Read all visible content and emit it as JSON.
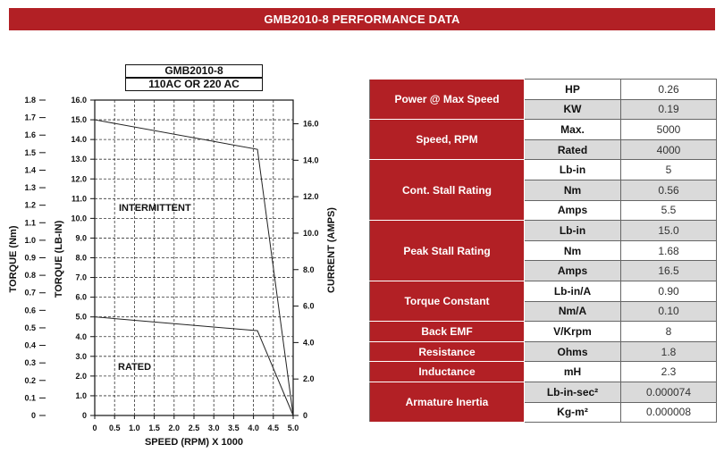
{
  "title": "GMB2010-8 PERFORMANCE DATA",
  "chart_box": {
    "line1": "GMB2010-8",
    "line2": "110AC OR 220 AC"
  },
  "chart_data": {
    "type": "line",
    "xlabel": "SPEED (RPM) X 1000",
    "ylabel_left_outer": "TORQUE (Nm)",
    "ylabel_left_inner": "TORQUE (LB-IN)",
    "ylabel_right": "CURRENT (AMPS)",
    "xlim": [
      0,
      5.0
    ],
    "ylim_lbin": [
      0,
      16.0
    ],
    "ylim_nm": [
      0,
      1.8
    ],
    "ylim_amps": [
      0,
      17.3
    ],
    "x_ticks": [
      "0",
      "0.5",
      "1.0",
      "1.5",
      "2.0",
      "2.5",
      "3.0",
      "3.5",
      "4.0",
      "4.5",
      "5.0"
    ],
    "lbin_ticks": [
      "0",
      "1.0",
      "2.0",
      "3.0",
      "4.0",
      "5.0",
      "6.0",
      "7.0",
      "8.0",
      "9.0",
      "10.0",
      "11.0",
      "12.0",
      "13.0",
      "14.0",
      "15.0",
      "16.0"
    ],
    "nm_ticks": [
      "0",
      "0.1",
      "0.2",
      "0.3",
      "0.4",
      "0.5",
      "0.6",
      "0.7",
      "0.8",
      "0.9",
      "1.0",
      "1.1",
      "1.2",
      "1.3",
      "1.4",
      "1.5",
      "1.6",
      "1.7",
      "1.8"
    ],
    "amps_ticks": [
      "0",
      "2.0",
      "4.0",
      "6.0",
      "8.0",
      "10.0",
      "12.0",
      "14.0",
      "16.0"
    ],
    "zone_labels": {
      "intermittent": "INTERMITTENT",
      "rated": "RATED"
    },
    "grid": true,
    "series": [
      {
        "x": [
          0,
          4.1,
          5.0
        ],
        "y": [
          15.0,
          13.5,
          0
        ]
      },
      {
        "x": [
          0,
          4.1,
          5.0
        ],
        "y": [
          5.0,
          4.3,
          0
        ]
      }
    ]
  },
  "table": {
    "groups": [
      {
        "label": "Power @ Max Speed",
        "rows": [
          {
            "unit": "HP",
            "value": "0.26"
          },
          {
            "unit": "KW",
            "value": "0.19"
          }
        ]
      },
      {
        "label": "Speed, RPM",
        "rows": [
          {
            "unit": "Max.",
            "value": "5000"
          },
          {
            "unit": "Rated",
            "value": "4000"
          }
        ]
      },
      {
        "label": "Cont. Stall Rating",
        "rows": [
          {
            "unit": "Lb-in",
            "value": "5"
          },
          {
            "unit": "Nm",
            "value": "0.56"
          },
          {
            "unit": "Amps",
            "value": "5.5"
          }
        ]
      },
      {
        "label": "Peak Stall Rating",
        "rows": [
          {
            "unit": "Lb-in",
            "value": "15.0"
          },
          {
            "unit": "Nm",
            "value": "1.68"
          },
          {
            "unit": "Amps",
            "value": "16.5"
          }
        ]
      },
      {
        "label": "Torque Constant",
        "rows": [
          {
            "unit": "Lb-in/A",
            "value": "0.90"
          },
          {
            "unit": "Nm/A",
            "value": "0.10"
          }
        ]
      },
      {
        "label": "Back EMF",
        "rows": [
          {
            "unit": "V/Krpm",
            "value": "8"
          }
        ]
      },
      {
        "label": "Resistance",
        "rows": [
          {
            "unit": "Ohms",
            "value": "1.8"
          }
        ]
      },
      {
        "label": "Inductance",
        "rows": [
          {
            "unit": "mH",
            "value": "2.3"
          }
        ]
      },
      {
        "label": "Armature Inertia",
        "rows": [
          {
            "unit": "Lb-in-sec²",
            "value": "0.000074"
          },
          {
            "unit": "Kg-m²",
            "value": "0.000008"
          }
        ]
      }
    ]
  },
  "colors": {
    "accent": "#b22025",
    "shade": "#dadada"
  }
}
